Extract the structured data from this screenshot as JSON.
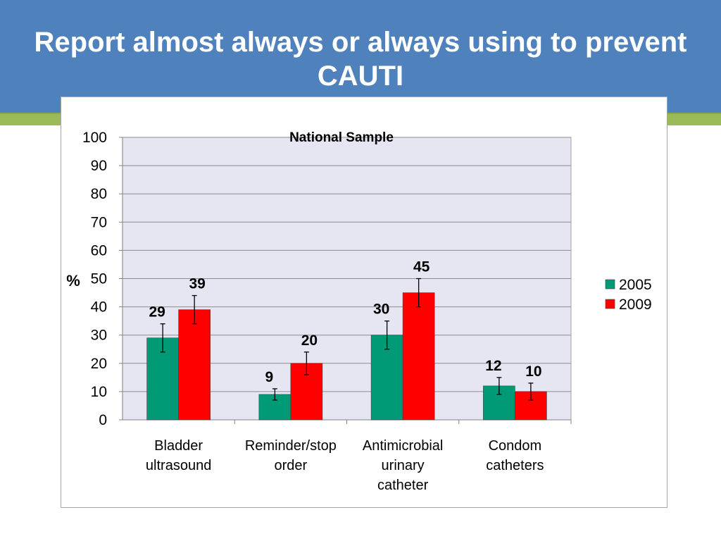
{
  "slide": {
    "title": "Report almost always or always using to prevent CAUTI"
  },
  "colors": {
    "header": "#4f81bd",
    "accent": "#9bbb59",
    "plot_area": "#e6e6f2",
    "series_2005": "#009a77",
    "series_2009": "#ff0000"
  },
  "chart_data": {
    "type": "bar",
    "title": "National Sample",
    "ylabel": "%",
    "xlabel": "",
    "ylim": [
      0,
      100
    ],
    "yticks": [
      0,
      10,
      20,
      30,
      40,
      50,
      60,
      70,
      80,
      90,
      100
    ],
    "grid": true,
    "legend_position": "right",
    "error_bars": true,
    "categories": [
      [
        "Bladder",
        "ultrasound"
      ],
      [
        "Reminder/stop",
        "order"
      ],
      [
        "Antimicrobial",
        "urinary",
        "catheter"
      ],
      [
        "Condom",
        "catheters"
      ]
    ],
    "series": [
      {
        "name": "2005",
        "color": "#009a77",
        "values": [
          29,
          9,
          30,
          12
        ],
        "error": [
          5,
          2,
          5,
          3
        ]
      },
      {
        "name": "2009",
        "color": "#ff0000",
        "values": [
          39,
          20,
          45,
          10
        ],
        "error": [
          5,
          4,
          5,
          3
        ]
      }
    ]
  }
}
